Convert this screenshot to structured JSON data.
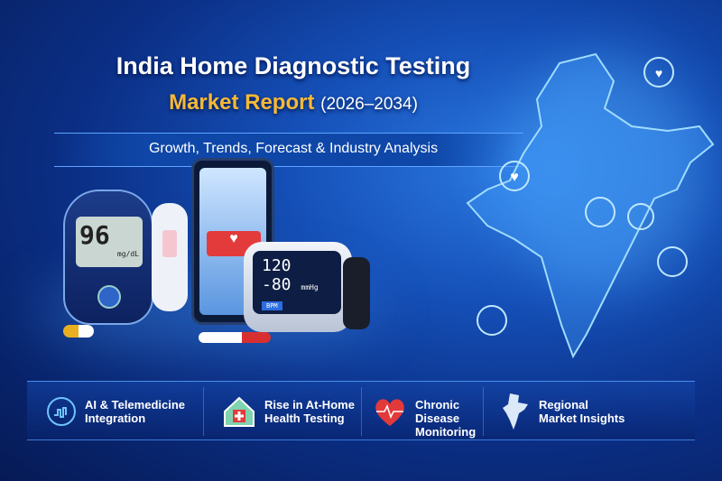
{
  "header": {
    "title": "India Home Diagnostic Testing",
    "subtitle": "Market Report",
    "years": "(2026–2034)",
    "tagline": "Growth, Trends, Forecast & Industry Analysis"
  },
  "devices": {
    "glucometer_value": "96",
    "glucometer_unit": "mg/dL",
    "bp_systolic": "120",
    "bp_diastolic": "80",
    "bp_unit": "mmHg",
    "bpm_label": "BPM"
  },
  "features": [
    {
      "label": "AI & Telemedicine\nIntegration",
      "icon": "ai-brain-icon"
    },
    {
      "label": "Rise in At-Home\nHealth Testing",
      "icon": "home-medical-icon"
    },
    {
      "label": "Chronic\nDisease\nMonitoring",
      "icon": "heart-pulse-icon"
    },
    {
      "label": "Regional\nMarket Insights",
      "icon": "india-map-icon"
    }
  ],
  "colors": {
    "accent": "#f6b936",
    "background": "#0b2f86",
    "heart": "#e23a3a"
  }
}
